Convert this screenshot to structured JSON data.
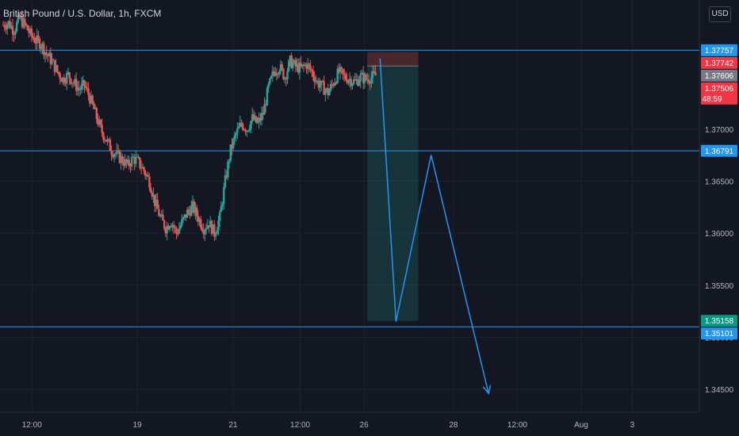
{
  "header": {
    "symbol_title": "British Pound / U.S. Dollar, 1h, FXCM",
    "currency": "USD"
  },
  "colors": {
    "background": "#131722",
    "grid": "#1e222d",
    "up": "#26a69a",
    "down": "#ef5350",
    "wick": "#b2b5be",
    "line": "#2196f3",
    "label_blue": "#2196f3",
    "label_red": "#f23645",
    "label_gray": "#787b86",
    "label_green": "#089981",
    "axis_text": "#b2b5be"
  },
  "chart_data": {
    "type": "candlestick",
    "title": "",
    "xlabel": "",
    "ylabel": "",
    "ylim": [
      1.3428,
      1.3824
    ],
    "x_ticks": [
      "12:00",
      "19",
      "21",
      "12:00",
      "26",
      "28",
      "12:00",
      "Aug",
      "3"
    ],
    "x_tick_pos": [
      -4,
      29,
      59,
      80,
      100,
      128,
      148,
      168,
      184
    ],
    "xlim": [
      -14,
      205
    ],
    "y_ticks": [
      "1.34500",
      "1.35000",
      "1.35500",
      "1.36000",
      "1.36500",
      "1.37000"
    ],
    "y_tick_values": [
      1.345,
      1.35,
      1.355,
      1.36,
      1.365,
      1.37
    ],
    "trend_close": [
      1.38,
      1.3802,
      1.3795,
      1.3806,
      1.38,
      1.3791,
      1.3785,
      1.3782,
      1.3772,
      1.3765,
      1.3755,
      1.3748,
      1.3752,
      1.3745,
      1.3738,
      1.3742,
      1.373,
      1.3715,
      1.37,
      1.369,
      1.368,
      1.3675,
      1.367,
      1.3665,
      1.3672,
      1.3668,
      1.366,
      1.365,
      1.363,
      1.3615,
      1.3605,
      1.3612,
      1.36,
      1.361,
      1.362,
      1.3625,
      1.3615,
      1.3605,
      1.361,
      1.36,
      1.3615,
      1.365,
      1.368,
      1.3695,
      1.3705,
      1.37,
      1.371,
      1.3705,
      1.3715,
      1.374,
      1.3755,
      1.376,
      1.375,
      1.3765,
      1.376,
      1.3758,
      1.3762,
      1.3755,
      1.3745,
      1.374,
      1.3735,
      1.3745,
      1.3755,
      1.375,
      1.3748,
      1.3745,
      1.375,
      1.3748,
      1.375,
      1.3752
    ],
    "levels": [
      {
        "value": 1.37757,
        "label": "1.37757",
        "kind": "line",
        "color": "label_blue"
      },
      {
        "value": 1.36791,
        "label": "1.36791",
        "kind": "line",
        "color": "label_blue"
      },
      {
        "value": 1.35101,
        "label": "1.35101",
        "kind": "line",
        "color": "label_blue"
      }
    ],
    "price_labels": [
      {
        "value": 1.37757,
        "label": "1.37757",
        "color": "label_blue"
      },
      {
        "value": 1.37742,
        "label": "1.37742",
        "color": "label_red"
      },
      {
        "value": 1.37606,
        "label": "1.37606",
        "color": "label_gray"
      },
      {
        "value": 1.37506,
        "label": "1.37506",
        "sub": "48:59",
        "color": "label_red"
      },
      {
        "value": 1.36791,
        "label": "1.36791",
        "color": "label_blue"
      },
      {
        "value": 1.35158,
        "label": "1.35158",
        "color": "label_green"
      },
      {
        "value": 1.35101,
        "label": "1.35101",
        "color": "label_blue"
      }
    ],
    "position": {
      "x_start": 101,
      "x_end": 117,
      "entry": 1.37606,
      "stop": 1.37742,
      "target": 1.35158
    },
    "projection": [
      {
        "x": 105,
        "y": 1.3768
      },
      {
        "x": 110,
        "y": 1.3515
      },
      {
        "x": 121,
        "y": 1.3675
      },
      {
        "x": 139,
        "y": 1.3446
      }
    ]
  }
}
